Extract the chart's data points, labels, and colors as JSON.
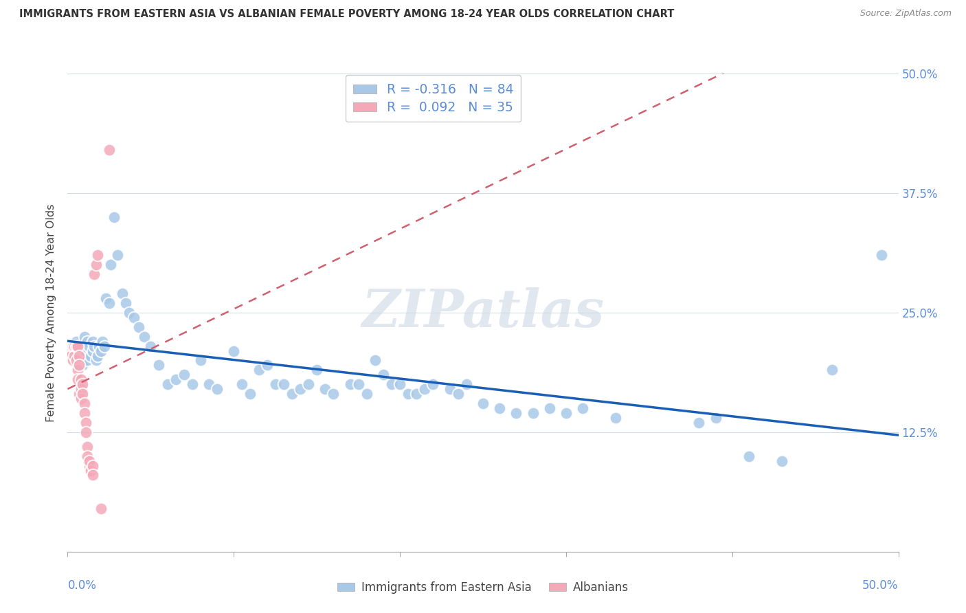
{
  "title": "IMMIGRANTS FROM EASTERN ASIA VS ALBANIAN FEMALE POVERTY AMONG 18-24 YEAR OLDS CORRELATION CHART",
  "source": "Source: ZipAtlas.com",
  "ylabel": "Female Poverty Among 18-24 Year Olds",
  "xlim": [
    0.0,
    0.5
  ],
  "ylim": [
    0.0,
    0.5
  ],
  "blue_R": -0.316,
  "blue_N": 84,
  "pink_R": 0.092,
  "pink_N": 35,
  "blue_color": "#a8c8e8",
  "pink_color": "#f4a8b8",
  "blue_line_color": "#1a5fb5",
  "pink_line_color": "#d06070",
  "legend_text_color": "#5b8dd9",
  "watermark": "ZIPatlas",
  "grid_color": "#d0dde8",
  "blue_pts_x": [
    0.003,
    0.005,
    0.006,
    0.007,
    0.008,
    0.008,
    0.009,
    0.01,
    0.01,
    0.011,
    0.012,
    0.012,
    0.013,
    0.014,
    0.015,
    0.015,
    0.016,
    0.017,
    0.018,
    0.019,
    0.02,
    0.021,
    0.022,
    0.023,
    0.025,
    0.026,
    0.028,
    0.03,
    0.033,
    0.035,
    0.037,
    0.04,
    0.043,
    0.046,
    0.05,
    0.055,
    0.06,
    0.065,
    0.07,
    0.075,
    0.08,
    0.085,
    0.09,
    0.1,
    0.105,
    0.11,
    0.115,
    0.12,
    0.125,
    0.13,
    0.135,
    0.14,
    0.145,
    0.15,
    0.155,
    0.16,
    0.17,
    0.175,
    0.18,
    0.185,
    0.19,
    0.195,
    0.2,
    0.205,
    0.21,
    0.215,
    0.22,
    0.23,
    0.235,
    0.24,
    0.25,
    0.26,
    0.27,
    0.28,
    0.29,
    0.3,
    0.31,
    0.33,
    0.38,
    0.39,
    0.41,
    0.43,
    0.46,
    0.49
  ],
  "blue_pts_y": [
    0.215,
    0.22,
    0.21,
    0.2,
    0.215,
    0.205,
    0.195,
    0.225,
    0.215,
    0.21,
    0.22,
    0.2,
    0.215,
    0.205,
    0.21,
    0.22,
    0.215,
    0.2,
    0.205,
    0.215,
    0.21,
    0.22,
    0.215,
    0.265,
    0.26,
    0.3,
    0.35,
    0.31,
    0.27,
    0.26,
    0.25,
    0.245,
    0.235,
    0.225,
    0.215,
    0.195,
    0.175,
    0.18,
    0.185,
    0.175,
    0.2,
    0.175,
    0.17,
    0.21,
    0.175,
    0.165,
    0.19,
    0.195,
    0.175,
    0.175,
    0.165,
    0.17,
    0.175,
    0.19,
    0.17,
    0.165,
    0.175,
    0.175,
    0.165,
    0.2,
    0.185,
    0.175,
    0.175,
    0.165,
    0.165,
    0.17,
    0.175,
    0.17,
    0.165,
    0.175,
    0.155,
    0.15,
    0.145,
    0.145,
    0.15,
    0.145,
    0.15,
    0.14,
    0.135,
    0.14,
    0.1,
    0.095,
    0.19,
    0.31
  ],
  "pink_pts_x": [
    0.001,
    0.002,
    0.003,
    0.003,
    0.004,
    0.004,
    0.005,
    0.005,
    0.006,
    0.006,
    0.006,
    0.007,
    0.007,
    0.007,
    0.008,
    0.008,
    0.008,
    0.009,
    0.009,
    0.01,
    0.01,
    0.011,
    0.011,
    0.012,
    0.012,
    0.013,
    0.013,
    0.014,
    0.015,
    0.015,
    0.016,
    0.017,
    0.018,
    0.02,
    0.025
  ],
  "pink_pts_y": [
    0.21,
    0.205,
    0.215,
    0.2,
    0.215,
    0.205,
    0.215,
    0.2,
    0.19,
    0.18,
    0.215,
    0.205,
    0.195,
    0.165,
    0.18,
    0.17,
    0.16,
    0.175,
    0.165,
    0.155,
    0.145,
    0.135,
    0.125,
    0.11,
    0.1,
    0.09,
    0.095,
    0.085,
    0.09,
    0.08,
    0.29,
    0.3,
    0.31,
    0.045,
    0.42
  ],
  "blue_line_x": [
    0.0,
    0.5
  ],
  "blue_line_y": [
    0.225,
    0.125
  ],
  "pink_line_x": [
    0.0,
    0.03
  ],
  "pink_line_y": [
    0.195,
    0.21
  ]
}
